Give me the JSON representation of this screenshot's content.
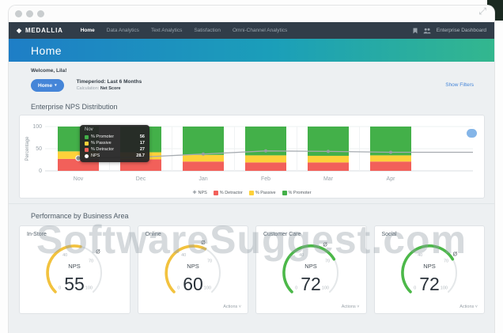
{
  "navbar": {
    "brand": "MEDALLIA",
    "items": [
      {
        "label": "Home",
        "active": true
      },
      {
        "label": "Data Analytics",
        "active": false
      },
      {
        "label": "Text Analytics",
        "active": false
      },
      {
        "label": "Satisfaction",
        "active": false
      },
      {
        "label": "Omni-Channel Analytics",
        "active": false
      }
    ],
    "right_label": "Enterprise Dashboard"
  },
  "hero": {
    "title": "Home"
  },
  "welcome": "Welcome, Lila!",
  "filter_bar": {
    "button_label": "Home",
    "timeperiod_label": "Timeperiod:",
    "timeperiod_value": "Last 6 Months",
    "calculation_label": "Calculation:",
    "calculation_value": "Net Score",
    "show_filters": "Show Filters"
  },
  "nps_section": {
    "title": "Enterprise NPS Distribution"
  },
  "chart_data": {
    "type": "bar",
    "subtype": "stacked-bar-with-line",
    "categories": [
      "Nov",
      "Dec",
      "Jan",
      "Feb",
      "Mar",
      "Apr"
    ],
    "series": [
      {
        "name": "% Detractor",
        "color": "#f2605a",
        "values": [
          27,
          26,
          21,
          19,
          19,
          21
        ]
      },
      {
        "name": "% Passive",
        "color": "#fdd13a",
        "values": [
          17,
          16,
          15,
          16,
          15,
          14
        ]
      },
      {
        "name": "% Promoter",
        "color": "#43b049",
        "values": [
          56,
          58,
          64,
          65,
          66,
          65
        ]
      }
    ],
    "line_series": {
      "name": "NPS",
      "color": "#a6abb0",
      "values": [
        28.7,
        31,
        38,
        45,
        44,
        42
      ]
    },
    "title": "Enterprise NPS Distribution",
    "xlabel": "",
    "ylabel": "Percentage",
    "yticks": [
      0,
      50,
      100
    ],
    "ylim": [
      0,
      100
    ],
    "grid": true,
    "legend_position": "bottom",
    "legend": [
      "NPS",
      "% Detractor",
      "% Passive",
      "% Promoter"
    ]
  },
  "tooltip": {
    "title": "Nov",
    "rows": [
      {
        "label": "% Promoter",
        "value": "56",
        "color": "#43b049",
        "shape": "square"
      },
      {
        "label": "% Passive",
        "value": "17",
        "color": "#fdd13a",
        "shape": "square"
      },
      {
        "label": "% Detractor",
        "value": "27",
        "color": "#f2605a",
        "shape": "square"
      },
      {
        "label": "NPS",
        "value": "28.7",
        "color": "#ffffff",
        "shape": "circle"
      }
    ]
  },
  "performance_section": {
    "title": "Performance by Business Area"
  },
  "gauge_ticks": [
    0,
    40,
    70,
    100
  ],
  "gauges": [
    {
      "title": "In-Store",
      "metric": "NPS",
      "value": 55,
      "color": "#f2c23e",
      "marker": 68,
      "actions": null
    },
    {
      "title": "Online",
      "metric": "NPS",
      "value": 60,
      "color": "#f2c23e",
      "marker": 57,
      "actions": "Actions"
    },
    {
      "title": "Customer Care",
      "metric": "NPS",
      "value": 72,
      "color": "#4cb849",
      "marker": 60,
      "actions": "Actions"
    },
    {
      "title": "Social",
      "metric": "NPS",
      "value": 72,
      "color": "#4cb849",
      "marker": 70,
      "actions": "Actions"
    }
  ],
  "watermark": "SoftwareSuggest.com"
}
